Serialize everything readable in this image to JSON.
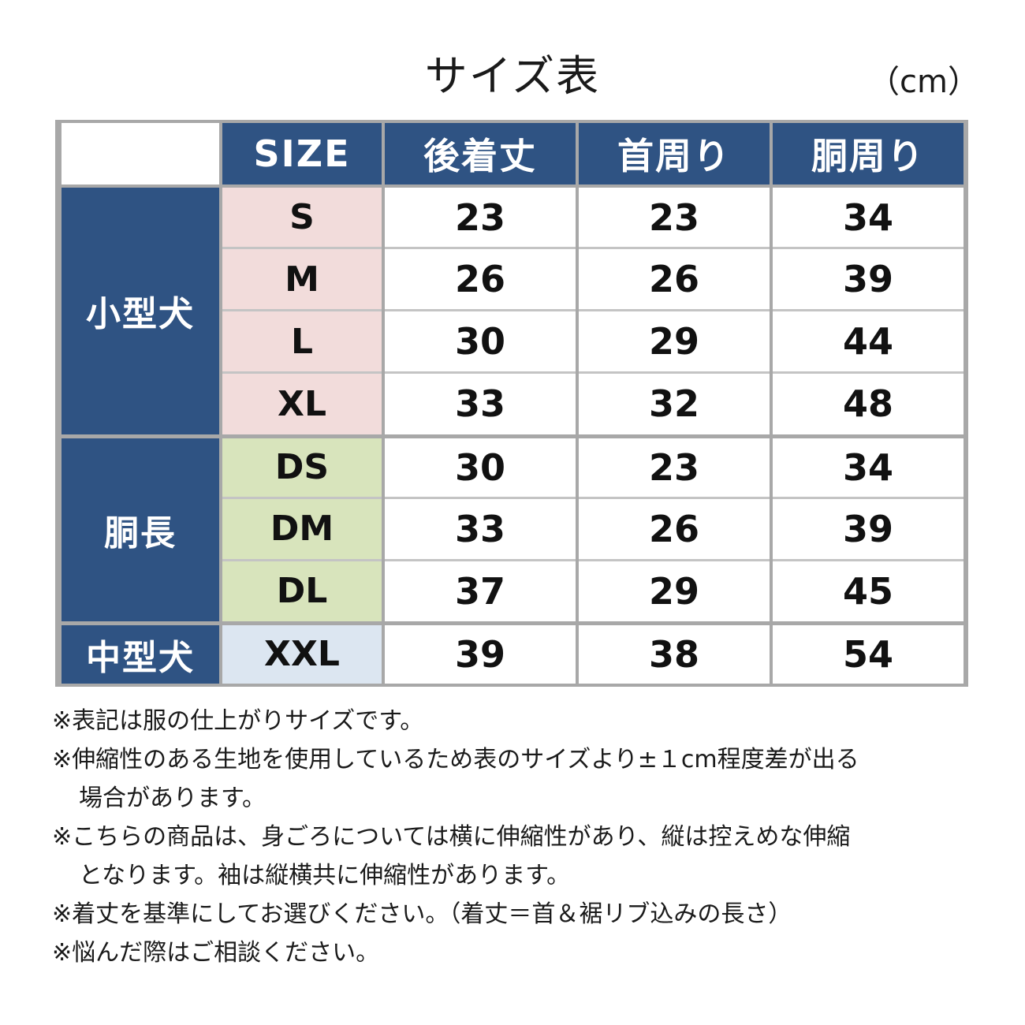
{
  "title": "サイズ表",
  "unit": "（cm）",
  "table": {
    "headers": [
      "SIZE",
      "後着丈",
      "首周り",
      "胴周り"
    ],
    "groups": [
      {
        "name": "小型犬",
        "rows": [
          {
            "size": "S",
            "values": [
              "23",
              "23",
              "34"
            ]
          },
          {
            "size": "M",
            "values": [
              "26",
              "26",
              "39"
            ]
          },
          {
            "size": "L",
            "values": [
              "30",
              "29",
              "44"
            ]
          },
          {
            "size": "XL",
            "values": [
              "33",
              "32",
              "48"
            ]
          }
        ]
      },
      {
        "name": "胴長",
        "rows": [
          {
            "size": "DS",
            "values": [
              "30",
              "23",
              "34"
            ]
          },
          {
            "size": "DM",
            "values": [
              "33",
              "26",
              "39"
            ]
          },
          {
            "size": "DL",
            "values": [
              "37",
              "29",
              "45"
            ]
          }
        ]
      },
      {
        "name": "中型犬",
        "rows": [
          {
            "size": "XXL",
            "values": [
              "39",
              "38",
              "54"
            ]
          }
        ]
      }
    ],
    "colors": {
      "header": "#2f5383",
      "group_1_size": "#f2dcdb",
      "group_2_size": "#d8e4bc",
      "group_3_size": "#dce6f1",
      "grid": "#a8a8a8"
    }
  },
  "notes": [
    "※表記は服の仕上がりサイズです。",
    "※伸縮性のある生地を使用しているため表のサイズより±１cm程度差が出る",
    "場合があります。",
    "※こちらの商品は、身ごろについては横に伸縮性があり、縦は控えめな伸縮",
    "となります。袖は縦横共に伸縮性があります。",
    "※着丈を基準にしてお選びください。（着丈＝首＆裾リブ込みの長さ）",
    "※悩んだ際はご相談ください。"
  ]
}
